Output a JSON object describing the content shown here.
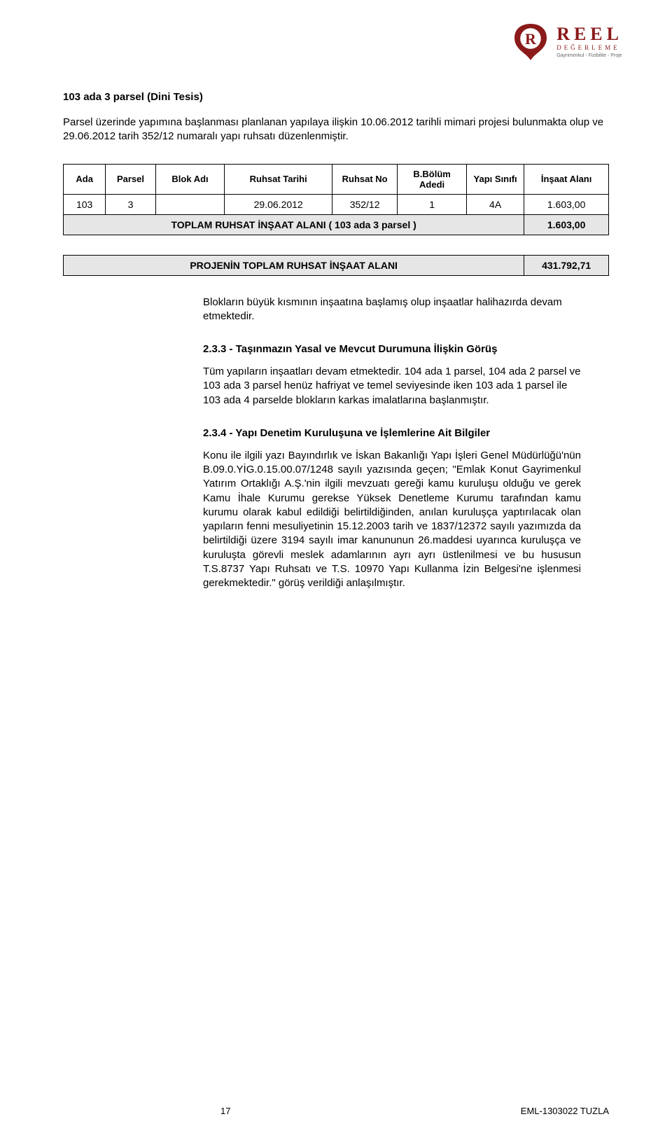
{
  "logo": {
    "brand": "REEL",
    "sub": "DEĞERLEME",
    "tiny": "Gayrimenkul - Fizibilite - Proje"
  },
  "section_title": "103 ada 3 parsel (Dini Tesis)",
  "intro_para": "Parsel üzerinde yapımına başlanması planlanan yapılaya ilişkin 10.06.2012 tarihli mimari projesi bulunmakta olup ve 29.06.2012 tarih 352/12 numaralı yapı ruhsatı düzenlenmiştir.",
  "table1": {
    "headers": [
      "Ada",
      "Parsel",
      "Blok Adı",
      "Ruhsat Tarihi",
      "Ruhsat No",
      "B.Bölüm Adedi",
      "Yapı Sınıfı",
      "İnşaat Alanı"
    ],
    "col_widths": [
      "55px",
      "65px",
      "90px",
      "140px",
      "85px",
      "90px",
      "75px",
      "110px"
    ],
    "row": [
      "103",
      "3",
      "",
      "29.06.2012",
      "352/12",
      "1",
      "4A",
      "1.603,00"
    ],
    "total_label": "TOPLAM RUHSAT İNŞAAT ALANI ( 103 ada 3 parsel )",
    "total_value": "1.603,00",
    "shaded_bg": "#e6e6e6"
  },
  "table2": {
    "label": "PROJENİN TOPLAM RUHSAT İNŞAAT ALANI",
    "value": "431.792,71",
    "col_widths": [
      "600px",
      "110px"
    ],
    "shaded_bg": "#e6e6e6"
  },
  "para_blocks_devam": "Blokların büyük kısmının inşaatına başlamış olup inşaatlar halihazırda devam etmektedir.",
  "sec233_title": "2.3.3  -  Taşınmazın Yasal ve Mevcut Durumuna İlişkin Görüş",
  "sec233_body": "Tüm yapıların inşaatları devam etmektedir. 104 ada 1 parsel, 104 ada 2 parsel ve 103 ada 3 parsel henüz hafriyat ve temel seviyesinde iken 103 ada 1 parsel ile 103 ada 4 parselde blokların karkas imalatlarına başlanmıştır.",
  "sec234_title": "2.3.4  -  Yapı Denetim Kuruluşuna ve İşlemlerine Ait Bilgiler",
  "sec234_body": "Konu ile ilgili yazı Bayındırlık ve İskan Bakanlığı Yapı İşleri Genel Müdürlüğü'nün B.09.0.YİG.0.15.00.07/1248 sayılı yazısında geçen; \"Emlak Konut Gayrimenkul Yatırım Ortaklığı A.Ş.'nin ilgili mevzuatı gereği kamu kuruluşu olduğu ve gerek Kamu İhale Kurumu gerekse Yüksek Denetleme Kurumu tarafından kamu kurumu olarak kabul edildiği belirtildiğinden, anılan kuruluşça yaptırılacak olan yapıların fenni mesuliyetinin 15.12.2003 tarih ve 1837/12372 sayılı yazımızda da belirtildiği üzere 3194 sayılı imar kanununun 26.maddesi uyarınca kuruluşça ve kuruluşta görevli meslek adamlarının ayrı ayrı üstlenilmesi ve bu hususun T.S.8737 Yapı Ruhsatı ve T.S. 10970 Yapı Kullanma İzin Belgesi'ne işlenmesi gerekmektedir.\" görüş verildiği anlaşılmıştır.",
  "footer": {
    "page": "17",
    "doc_ref": "EML-1303022 TUZLA"
  }
}
